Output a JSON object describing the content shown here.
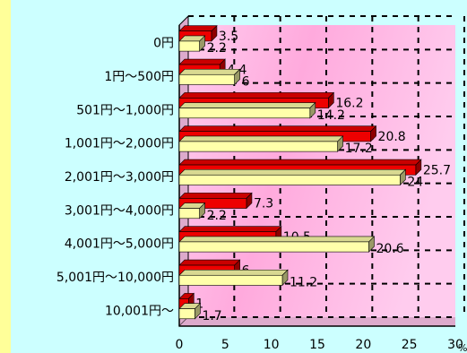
{
  "chart_data": {
    "type": "bar",
    "orientation": "horizontal",
    "style": "3d",
    "categories": [
      "0円",
      "1円～500円",
      "501円～1,000円",
      "1,001円～2,000円",
      "2,001円～3,000円",
      "3,001円～4,000円",
      "4,001円～5,000円",
      "5,001円～10,000円",
      "10,001円～"
    ],
    "series": [
      {
        "values": [
          3.5,
          4.4,
          16.2,
          20.8,
          25.7,
          7.3,
          10.5,
          6,
          1
        ],
        "color": "#ee0000"
      },
      {
        "values": [
          2.2,
          6,
          14.2,
          17.2,
          24,
          2.2,
          20.6,
          11.2,
          1.7
        ],
        "color": "#ffffaa"
      }
    ],
    "xlim": [
      0,
      30
    ],
    "xticks": [
      0,
      5,
      10,
      15,
      20,
      25,
      30
    ],
    "unit": "%",
    "grid": true,
    "background": [
      "#ffccee",
      "#ffaadd"
    ],
    "page_background": "#ccffff"
  }
}
